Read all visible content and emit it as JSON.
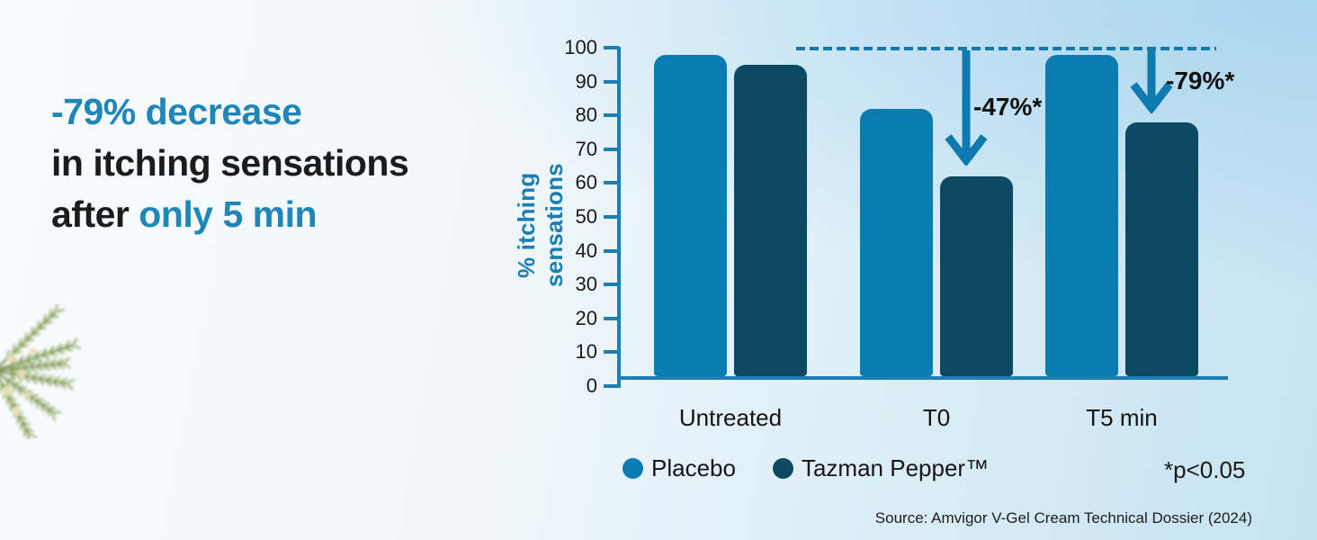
{
  "headline": {
    "line1_blue": "-79% decrease",
    "line2_black": "in itching sensations",
    "line3_black": "after",
    "line3_blue": "only 5 min"
  },
  "chart_data": {
    "type": "bar",
    "title": "",
    "xlabel": "",
    "ylabel": "% itching sensations",
    "ylim": [
      0,
      100
    ],
    "yticks": [
      0,
      10,
      20,
      30,
      40,
      50,
      60,
      70,
      80,
      90,
      100
    ],
    "grid": false,
    "legend_position": "bottom",
    "categories": [
      "Untreated",
      "T0",
      "T5 min"
    ],
    "series": [
      {
        "name": "Placebo",
        "color": "#0a7cb0",
        "values": [
          98,
          82,
          98
        ]
      },
      {
        "name": "Tazman Pepper™",
        "color": "#0c4a63",
        "values": [
          95,
          62,
          78
        ]
      }
    ],
    "reference_line": {
      "value": 100,
      "style": "dashed",
      "color": "#1578ab"
    },
    "annotations": [
      {
        "label": "-47%*",
        "category": "T0",
        "series": "Tazman Pepper™"
      },
      {
        "label": "-79%*",
        "category": "T5 min",
        "series": "Tazman Pepper™"
      }
    ]
  },
  "legend": {
    "items": [
      {
        "label": "Placebo",
        "color": "#0a7cb0"
      },
      {
        "label": "Tazman Pepper™",
        "color": "#0c4a63"
      }
    ]
  },
  "footnotes": {
    "p_value": "*p<0.05",
    "source": "Source: Amvigor V-Gel Cream Technical Dossier (2024)"
  },
  "colors": {
    "accent_blue": "#1e86b8",
    "axis_blue": "#1b7fb5",
    "arrow_blue": "#0f7ab0",
    "text_dark": "#1c1c1c"
  }
}
